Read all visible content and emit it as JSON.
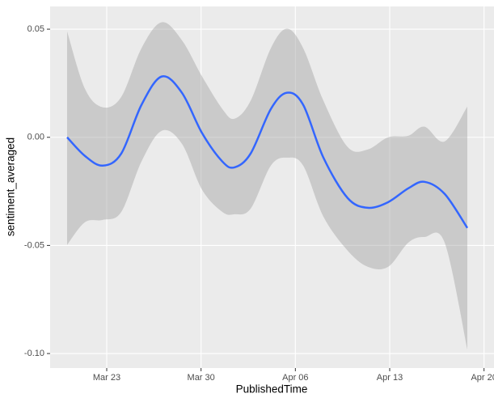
{
  "chart_data": {
    "type": "smooth",
    "x_label": "PublishedTime",
    "y_label": "sentiment_averaged",
    "x": [
      20.06,
      21.38,
      22.7,
      24.08,
      25.58,
      27.08,
      28.58,
      30.08,
      31.58,
      32.48,
      33.68,
      35.18,
      36.38,
      37.58,
      39.08,
      40.88,
      42.38,
      43.88,
      45.38,
      46.58,
      48.08,
      49.76
    ],
    "values": [
      0,
      -0.0086,
      -0.0131,
      -0.0075,
      0.015,
      0.0281,
      0.0206,
      0.0019,
      -0.0112,
      -0.0139,
      -0.0075,
      0.0131,
      0.0206,
      0.015,
      -0.0094,
      -0.0281,
      -0.0326,
      -0.03,
      -0.0236,
      -0.0206,
      -0.0262,
      -0.0419
    ],
    "upper": [
      0.049,
      0.0225,
      0.0139,
      0.0187,
      0.0412,
      0.0532,
      0.0449,
      0.0281,
      0.0131,
      0.0086,
      0.0169,
      0.0412,
      0.0502,
      0.0412,
      0.0169,
      -0.0045,
      -0.0056,
      0,
      0.0007,
      0.0049,
      -0.0019,
      0.0142
    ],
    "lower": [
      -0.0498,
      -0.0393,
      -0.0382,
      -0.0345,
      -0.0112,
      0.003,
      -0.003,
      -0.0243,
      -0.0345,
      -0.0356,
      -0.033,
      -0.0131,
      -0.0094,
      -0.0131,
      -0.0367,
      -0.0524,
      -0.0599,
      -0.0599,
      -0.0487,
      -0.0461,
      -0.0487,
      -0.0981
    ],
    "color": "#3366ff",
    "band_color": "#999999",
    "xlim": [
      18.8,
      51.74
    ],
    "xticks": [
      {
        "value": 23,
        "label": "Mar 23"
      },
      {
        "value": 30,
        "label": "Mar 30"
      },
      {
        "value": 37,
        "label": "Apr 06"
      },
      {
        "value": 44,
        "label": "Apr 13"
      },
      {
        "value": 51,
        "label": "Apr 20"
      }
    ],
    "ylim": [
      -0.1067,
      0.0605
    ],
    "yticks": [
      0.05,
      {
        "value": 0,
        "label": "0.00"
      },
      -0.05,
      {
        "value": -0.1,
        "label": "-0.10"
      }
    ],
    "grid": true
  }
}
